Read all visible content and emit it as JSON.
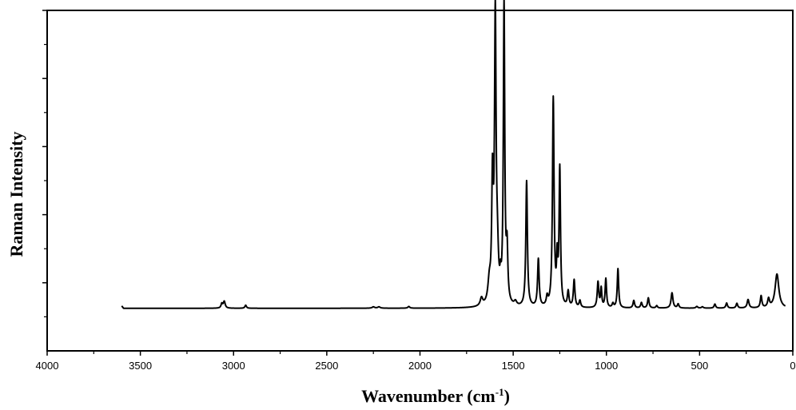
{
  "chart_data": {
    "type": "line",
    "title": "",
    "xlabel": "Wavenumber (cm",
    "xlabel_sup": "-1",
    "xlabel_close": ")",
    "ylabel": "Raman Intensity",
    "xlim": [
      4000,
      0
    ],
    "ylim": [
      0,
      100
    ],
    "x_reversed": true,
    "x_ticks": [
      4000,
      3500,
      3000,
      2500,
      2000,
      1500,
      1000,
      500,
      0
    ],
    "x_tick_labels": [
      "4000",
      "3500",
      "3000",
      "2500",
      "2000",
      "1500",
      "1000",
      "500",
      "0"
    ],
    "y_tick_labels_shown": false,
    "grid": false,
    "line_color": "#000000",
    "baseline": 12.5,
    "range": [
      3600,
      40
    ],
    "baseline_edge": 13.2,
    "peaks": [
      [
        3063,
        1.3,
        5
      ],
      [
        3050,
        2.0,
        6
      ],
      [
        2935,
        0.9,
        5
      ],
      [
        2250,
        0.4,
        8
      ],
      [
        2220,
        0.4,
        8
      ],
      [
        2060,
        0.5,
        6
      ],
      [
        1670,
        2.3,
        8
      ],
      [
        1628,
        6.0,
        9
      ],
      [
        1611,
        34.5,
        5
      ],
      [
        1596,
        82.5,
        5
      ],
      [
        1585,
        12.0,
        7
      ],
      [
        1568,
        4.5,
        4
      ],
      [
        1549,
        88.0,
        4.5
      ],
      [
        1533,
        15.0,
        5
      ],
      [
        1488,
        1.2,
        8
      ],
      [
        1428,
        37.0,
        5
      ],
      [
        1365,
        14.0,
        5
      ],
      [
        1318,
        2.5,
        5
      ],
      [
        1285,
        61.0,
        5
      ],
      [
        1264,
        12.0,
        4
      ],
      [
        1250,
        40.0,
        4.5
      ],
      [
        1205,
        4.5,
        5
      ],
      [
        1173,
        8.0,
        5
      ],
      [
        1142,
        2.0,
        5
      ],
      [
        1045,
        7.5,
        5
      ],
      [
        1028,
        5.5,
        4
      ],
      [
        1003,
        8.5,
        4.5
      ],
      [
        965,
        1.2,
        5
      ],
      [
        938,
        11.5,
        4.5
      ],
      [
        853,
        2.2,
        5
      ],
      [
        812,
        1.6,
        5
      ],
      [
        775,
        3.0,
        5
      ],
      [
        730,
        0.7,
        5
      ],
      [
        648,
        4.5,
        6
      ],
      [
        615,
        1.2,
        5
      ],
      [
        515,
        0.5,
        6
      ],
      [
        485,
        0.4,
        6
      ],
      [
        418,
        1.2,
        5
      ],
      [
        355,
        1.5,
        5
      ],
      [
        300,
        1.4,
        5
      ],
      [
        240,
        2.5,
        6
      ],
      [
        170,
        3.5,
        5
      ],
      [
        130,
        2.5,
        6
      ],
      [
        85,
        10.0,
        12
      ]
    ]
  }
}
